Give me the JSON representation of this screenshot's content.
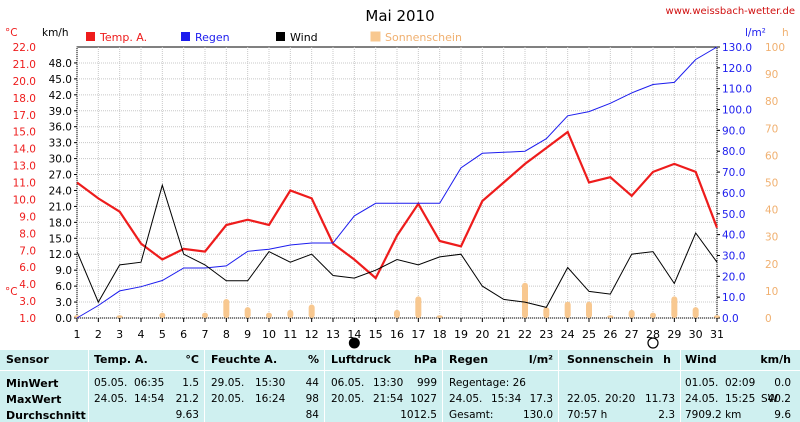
{
  "title": "Mai 2010",
  "website": "www.weissbach-wetter.de",
  "units": {
    "temp": "°C",
    "wind": "km/h",
    "rain": "l/m²",
    "sun": "h"
  },
  "legend": [
    {
      "label": "Temp. A.",
      "color": "#ee1c1c",
      "text_color": "#ee1c1c"
    },
    {
      "label": "Regen",
      "color": "#1c1cee",
      "text_color": "#1c1cee"
    },
    {
      "label": "Wind",
      "color": "#000000",
      "text_color": "#000000"
    },
    {
      "label": "Sonnenschein",
      "color": "#f8c890",
      "text_color": "#f0b070"
    }
  ],
  "moon": {
    "new_day": 14,
    "full_day": 28
  },
  "chart_data": {
    "type": "line",
    "x": [
      1,
      2,
      3,
      4,
      5,
      6,
      7,
      8,
      9,
      10,
      11,
      12,
      13,
      14,
      15,
      16,
      17,
      18,
      19,
      20,
      21,
      22,
      23,
      24,
      25,
      26,
      27,
      28,
      29,
      30,
      31
    ],
    "axes": {
      "temp": {
        "ticks": [
          22.0,
          21.0,
          20.0,
          18.0,
          17.0,
          15.0,
          14.0,
          13.0,
          11.0,
          10.0,
          9.0,
          8.0,
          7.0,
          6.0,
          4.0,
          3.0,
          1.0
        ]
      },
      "wind": {
        "min": 0.0,
        "max": 51.0,
        "ticks": [
          0.0,
          3.0,
          6.0,
          9.0,
          12.0,
          15.0,
          18.0,
          21.0,
          24.0,
          27.0,
          30.0,
          33.0,
          36.0,
          39.0,
          42.0,
          45.0,
          48.0
        ]
      },
      "rain": {
        "min": 0.0,
        "max": 130.0,
        "ticks": [
          0.0,
          10.0,
          20.0,
          30.0,
          40.0,
          50.0,
          60.0,
          70.0,
          80.0,
          90.0,
          100.0,
          110.0,
          120.0,
          130.0
        ]
      },
      "sun": {
        "min": 0,
        "max": 100,
        "ticks": [
          0,
          10,
          20,
          30,
          40,
          50,
          60,
          70,
          80,
          90,
          100
        ]
      }
    },
    "series": [
      {
        "name": "Temp. A.",
        "axis": "wind",
        "color": "#ee1c1c",
        "values": [
          25.5,
          22.5,
          20,
          14,
          11,
          13,
          12.5,
          17.5,
          18.5,
          17.5,
          24,
          22.5,
          14,
          11,
          7.5,
          15.5,
          21.5,
          14.5,
          13.5,
          22,
          25.5,
          29,
          32,
          35,
          25.5,
          26.5,
          23,
          27.5,
          29,
          27.5,
          17
        ]
      },
      {
        "name": "Regen",
        "axis": "rain",
        "color": "#1c1cee",
        "values": [
          0,
          6,
          13,
          15,
          18,
          24,
          24,
          25,
          32,
          33,
          35,
          36,
          36,
          49,
          55,
          55,
          55,
          55,
          72,
          79,
          79.5,
          80,
          86,
          97,
          99,
          103,
          108,
          112,
          113,
          124,
          130
        ]
      },
      {
        "name": "Wind",
        "axis": "wind",
        "color": "#000000",
        "values": [
          12.5,
          3,
          10,
          10.5,
          25,
          12,
          10,
          7,
          7,
          12.5,
          10.5,
          12,
          8,
          7.5,
          9,
          11,
          10,
          11.5,
          12,
          6,
          3.5,
          3,
          2,
          9.5,
          5,
          4.5,
          12,
          12.5,
          6.5,
          16,
          10.5
        ]
      },
      {
        "name": "Sonnenschein",
        "axis": "sun",
        "color": "#f8c890",
        "type": "bar",
        "values": [
          1,
          0,
          1,
          0,
          2,
          0,
          2,
          7,
          4,
          2,
          3,
          5,
          0,
          0,
          0,
          3,
          8,
          1,
          0,
          0,
          0,
          13,
          4,
          6,
          6,
          1,
          3,
          2,
          8,
          4,
          1
        ]
      }
    ]
  },
  "stats": {
    "sensor": {
      "header": "Sensor",
      "rows": [
        "MinWert",
        "MaxWert",
        "Durchschnitt"
      ]
    },
    "temp": {
      "header": "Temp. A.",
      "unit": "°C",
      "rows": [
        {
          "date": "05.05.",
          "time": "06:35",
          "value": "1.5"
        },
        {
          "date": "24.05.",
          "time": "14:54",
          "value": "21.2"
        },
        {
          "date": "",
          "time": "",
          "value": "9.63"
        }
      ]
    },
    "humidity": {
      "header": "Feuchte A.",
      "unit": "%",
      "rows": [
        {
          "date": "29.05.",
          "time": "15:30",
          "value": "44"
        },
        {
          "date": "20.05.",
          "time": "16:24",
          "value": "98"
        },
        {
          "date": "",
          "time": "",
          "value": "84"
        }
      ]
    },
    "pressure": {
      "header": "Luftdruck",
      "unit": "hPa",
      "rows": [
        {
          "date": "06.05.",
          "time": "13:30",
          "value": "999"
        },
        {
          "date": "20.05.",
          "time": "21:54",
          "value": "1027"
        },
        {
          "date": "",
          "time": "",
          "value": "1012.5"
        }
      ]
    },
    "rain": {
      "header": "Regen",
      "unit": "l/m²",
      "rows": [
        {
          "date": "Regentage: 26",
          "time": "",
          "value": ""
        },
        {
          "date": "24.05.",
          "time": "15:34",
          "value": "17.3"
        },
        {
          "date": "Gesamt:",
          "time": "",
          "value": "130.0"
        }
      ]
    },
    "sun": {
      "header": "Sonnenschein",
      "unit": "h",
      "rows": [
        {
          "date": "",
          "time": "",
          "value": ""
        },
        {
          "date": "22.05.",
          "time": "20:20",
          "value": "11.73"
        },
        {
          "date": "70:57 h",
          "time": "",
          "value": "2.3"
        }
      ]
    },
    "wind": {
      "header": "Wind",
      "unit": "km/h",
      "rows": [
        {
          "date": "01.05.",
          "time": "02:09",
          "value": "0.0"
        },
        {
          "date": "24.05.",
          "time": "15:25",
          "extra": "SW",
          "value": "40.2"
        },
        {
          "date": "7909.2 km",
          "time": "",
          "value": "9.6"
        }
      ]
    }
  }
}
